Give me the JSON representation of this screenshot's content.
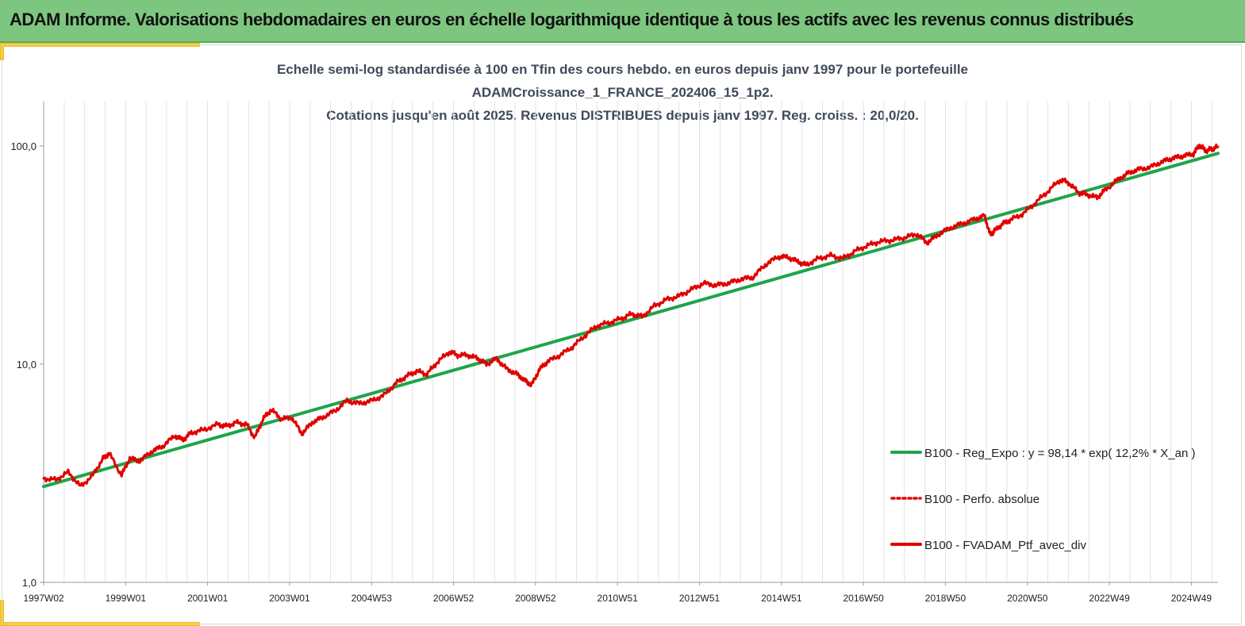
{
  "header": {
    "title": "ADAM Informe. Valorisations hebdomadaires en euros en échelle logarithmique identique à tous les actifs avec les revenus connus distribués"
  },
  "chart_data": {
    "type": "line",
    "title_lines": [
      "Echelle semi-log standardisée à 100 en Tfin des cours hebdo.  en euros depuis janv 1997 pour le portefeuille",
      "ADAMCroissance_1_FRANCE_202406_15_1p2.",
      "Cotations jusqu'en août 2025. Revenus DISTRIBUES depuis janv 1997. Reg. croiss. : 20,0/20."
    ],
    "y_scale": "log",
    "ylim": [
      1,
      160
    ],
    "y_ticks": [
      {
        "value": 1,
        "label": "1,0"
      },
      {
        "value": 10,
        "label": "10,0"
      },
      {
        "value": 100,
        "label": "100,0"
      }
    ],
    "xlim": [
      1997.0,
      2025.65
    ],
    "x_ticks": [
      {
        "value": 1997.0,
        "label": "1997W02"
      },
      {
        "value": 1999.0,
        "label": "1999W01"
      },
      {
        "value": 2001.0,
        "label": "2001W01"
      },
      {
        "value": 2003.0,
        "label": "2003W01"
      },
      {
        "value": 2005.0,
        "label": "2004W53"
      },
      {
        "value": 2007.0,
        "label": "2006W52"
      },
      {
        "value": 2009.0,
        "label": "2008W52"
      },
      {
        "value": 2011.0,
        "label": "2010W51"
      },
      {
        "value": 2013.0,
        "label": "2012W51"
      },
      {
        "value": 2015.0,
        "label": "2014W51"
      },
      {
        "value": 2017.0,
        "label": "2016W50"
      },
      {
        "value": 2019.0,
        "label": "2018W50"
      },
      {
        "value": 2021.0,
        "label": "2020W50"
      },
      {
        "value": 2023.0,
        "label": "2022W49"
      },
      {
        "value": 2025.0,
        "label": "2024W49"
      }
    ],
    "grid": "vertical",
    "legend_position": "right",
    "series": [
      {
        "name": "B100 - Reg_Expo : y = 98,14 * exp( 12,2% *  X_an )",
        "color": "#1fa44a",
        "style": "solid",
        "x": [
          1997.0,
          2025.65
        ],
        "y": [
          2.75,
          92.5
        ]
      },
      {
        "name": "B100 - Perfo. absolue",
        "color": "#e00000",
        "style": "dotted",
        "x": [],
        "y": []
      },
      {
        "name": "B100 - FVADAM_Ptf_avec_div",
        "color": "#e00000",
        "style": "solid",
        "x": [
          1997.0,
          1997.3,
          1997.6,
          1997.9,
          1998.2,
          1998.45,
          1998.6,
          1998.9,
          1999.1,
          1999.35,
          1999.65,
          1999.9,
          2000.2,
          2000.4,
          2000.6,
          2000.9,
          2001.25,
          2001.45,
          2001.7,
          2001.95,
          2002.15,
          2002.35,
          2002.55,
          2002.8,
          2003.05,
          2003.3,
          2003.55,
          2003.8,
          2004.1,
          2004.4,
          2004.7,
          2005.0,
          2005.3,
          2005.6,
          2005.85,
          2006.1,
          2006.35,
          2006.6,
          2006.9,
          2007.1,
          2007.35,
          2007.6,
          2007.8,
          2008.05,
          2008.3,
          2008.55,
          2008.75,
          2008.9,
          2009.1,
          2009.3,
          2009.6,
          2009.9,
          2010.2,
          2010.5,
          2010.8,
          2011.1,
          2011.35,
          2011.6,
          2011.9,
          2012.2,
          2012.5,
          2012.8,
          2013.1,
          2013.4,
          2013.7,
          2014.0,
          2014.3,
          2014.6,
          2014.9,
          2015.15,
          2015.4,
          2015.6,
          2015.9,
          2016.2,
          2016.5,
          2016.8,
          2017.1,
          2017.4,
          2017.7,
          2018.0,
          2018.3,
          2018.55,
          2018.8,
          2019.1,
          2019.4,
          2019.7,
          2019.95,
          2020.1,
          2020.2,
          2020.4,
          2020.6,
          2020.9,
          2021.2,
          2021.5,
          2021.8,
          2022.0,
          2022.25,
          2022.45,
          2022.7,
          2022.9,
          2023.2,
          2023.45,
          2023.7,
          2024.0,
          2024.3,
          2024.55,
          2024.8,
          2025.05,
          2025.2,
          2025.35,
          2025.5,
          2025.65
        ],
        "y": [
          3.0,
          2.95,
          3.2,
          2.75,
          3.1,
          3.7,
          3.9,
          3.1,
          3.7,
          3.6,
          4.0,
          4.2,
          4.7,
          4.5,
          4.85,
          5.0,
          5.3,
          5.2,
          5.4,
          5.3,
          4.6,
          5.6,
          6.2,
          5.6,
          5.7,
          4.8,
          5.4,
          5.7,
          6.1,
          6.8,
          6.6,
          6.8,
          7.2,
          8.2,
          8.8,
          9.3,
          9.0,
          10.2,
          11.4,
          11.0,
          11.0,
          10.6,
          10.0,
          10.6,
          9.5,
          9.0,
          8.4,
          8.0,
          9.5,
          10.3,
          11.0,
          12.0,
          13.5,
          15.0,
          15.5,
          16.2,
          17.0,
          16.5,
          18.5,
          19.8,
          20.5,
          22.0,
          23.5,
          23.0,
          23.5,
          24.5,
          25.0,
          28.5,
          31.0,
          31.0,
          29.5,
          28.5,
          30.5,
          31.5,
          30.5,
          33.0,
          35.0,
          36.5,
          37.0,
          38.0,
          39.5,
          36.0,
          39.0,
          42.0,
          44.0,
          46.0,
          48.0,
          39.0,
          41.0,
          44.0,
          46.0,
          49.0,
          55.0,
          62.0,
          70.0,
          68.0,
          61.0,
          60.0,
          58.0,
          63.0,
          70.0,
          75.0,
          78.0,
          80.0,
          85.0,
          88.0,
          90.0,
          92.0,
          101.0,
          95.0,
          97.0,
          99.0
        ]
      }
    ]
  }
}
